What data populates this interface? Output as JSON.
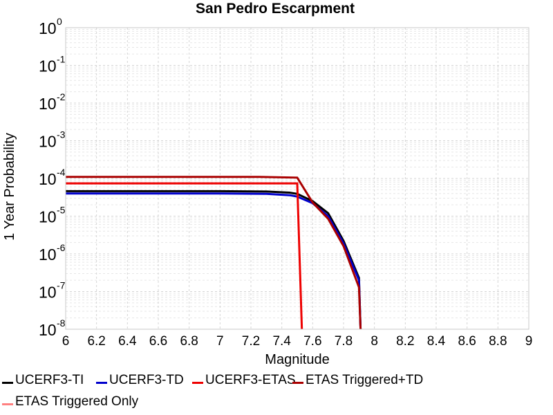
{
  "chart_data": {
    "type": "line",
    "title": "San Pedro Escarpment",
    "xlabel": "Magnitude",
    "ylabel": "1 Year Probability",
    "xlim": [
      6,
      9
    ],
    "ylim": [
      1e-08,
      1
    ],
    "yscale": "log",
    "grid": true,
    "legend_position": "bottom",
    "x_ticks": [
      "6",
      "6.2",
      "6.4",
      "6.6",
      "6.8",
      "7",
      "7.2",
      "7.4",
      "7.6",
      "7.8",
      "8",
      "8.2",
      "8.4",
      "8.6",
      "8.8",
      "9"
    ],
    "y_ticks": [
      {
        "base": "10",
        "exp": "0"
      },
      {
        "base": "10",
        "exp": "-1"
      },
      {
        "base": "10",
        "exp": "-2"
      },
      {
        "base": "10",
        "exp": "-3"
      },
      {
        "base": "10",
        "exp": "-4"
      },
      {
        "base": "10",
        "exp": "-5"
      },
      {
        "base": "10",
        "exp": "-6"
      },
      {
        "base": "10",
        "exp": "-7"
      },
      {
        "base": "10",
        "exp": "-8"
      }
    ],
    "series": [
      {
        "name": "UCERF3-TI",
        "color": "#000000",
        "x": [
          6.0,
          7.0,
          7.3,
          7.45,
          7.5,
          7.6,
          7.7,
          7.8,
          7.9,
          7.91
        ],
        "y": [
          4.6e-05,
          4.6e-05,
          4.5e-05,
          4.2e-05,
          3.9e-05,
          2.5e-05,
          1.2e-05,
          2.2e-06,
          2.3e-07,
          1e-08
        ]
      },
      {
        "name": "UCERF3-TD",
        "color": "#0000cc",
        "x": [
          6.0,
          7.0,
          7.3,
          7.45,
          7.5,
          7.6,
          7.7,
          7.8,
          7.9,
          7.91
        ],
        "y": [
          4e-05,
          4e-05,
          3.9e-05,
          3.6e-05,
          3.3e-05,
          2.2e-05,
          1e-05,
          1.9e-06,
          2e-07,
          1e-08
        ]
      },
      {
        "name": "UCERF3-ETAS",
        "color": "#ee0000",
        "x": [
          6.0,
          7.5,
          7.53
        ],
        "y": [
          7.4e-05,
          7.4e-05,
          1e-08
        ]
      },
      {
        "name": "ETAS Triggered+TD",
        "color": "#aa0000",
        "x": [
          6.0,
          7.25,
          7.5,
          7.6,
          7.7,
          7.8,
          7.9,
          7.91
        ],
        "y": [
          0.00011,
          0.00011,
          0.000105,
          2.3e-05,
          8.5e-06,
          1.6e-06,
          1.3e-07,
          1e-08
        ]
      },
      {
        "name": "ETAS Triggered Only",
        "color": "#ff8080",
        "x": [],
        "y": []
      }
    ]
  }
}
